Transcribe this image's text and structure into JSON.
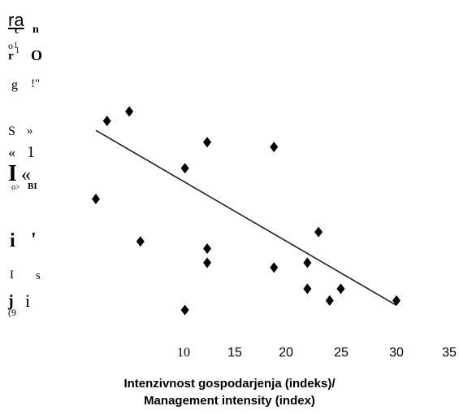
{
  "chart_data": {
    "type": "scatter",
    "xlabel_lines": [
      "Intenzivnost gospodarjenja (indeks)/",
      "Management intensity (index)"
    ],
    "ylabel_fragments": [
      "ra",
      "c",
      "n",
      "o",
      "1",
      "r",
      "1",
      "O",
      "g",
      "!\"",
      "S",
      "»",
      "«",
      "1",
      "I",
      "«",
      "o>",
      "BI",
      "i",
      "'",
      "I",
      "s",
      "j",
      "i",
      "(9"
    ],
    "x_ticks": [
      "10",
      "15",
      "20",
      "25",
      "30",
      "35"
    ],
    "xlim": [
      3,
      35
    ],
    "ylim": [
      0,
      100
    ],
    "points": [
      {
        "x": 3,
        "y": 51
      },
      {
        "x": 4,
        "y": 84
      },
      {
        "x": 6,
        "y": 88
      },
      {
        "x": 7,
        "y": 33
      },
      {
        "x": 11,
        "y": 64
      },
      {
        "x": 11,
        "y": 4
      },
      {
        "x": 13,
        "y": 75
      },
      {
        "x": 13,
        "y": 30
      },
      {
        "x": 13,
        "y": 24
      },
      {
        "x": 19,
        "y": 73
      },
      {
        "x": 19,
        "y": 22
      },
      {
        "x": 22,
        "y": 24
      },
      {
        "x": 22,
        "y": 13
      },
      {
        "x": 23,
        "y": 37
      },
      {
        "x": 24,
        "y": 8
      },
      {
        "x": 25,
        "y": 13
      },
      {
        "x": 30,
        "y": 8
      }
    ],
    "trendline": {
      "x": [
        3,
        30
      ],
      "y": [
        80,
        6
      ]
    },
    "grid": false,
    "marker": "diamond",
    "color": "#000000"
  }
}
